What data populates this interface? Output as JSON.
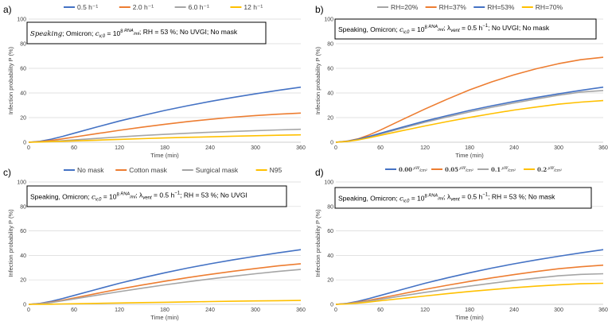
{
  "chart_data": [
    {
      "type": "line",
      "panel_label": "a)",
      "annotation": "Speaking; Omicron; c_v,0 = 10^8 RNA/ml; RH = 53 %; No UVGI; No mask",
      "annotation_parts": {
        "speaking": "Speaking",
        "rest": "; Omicron;",
        "cvar": "c",
        "csub": "v,0",
        "eq1": " = 10",
        "exp": "8",
        "frac_num": "RNA",
        "frac_den": "ml",
        "tail": "; RH = 53 %; No UVGI; No mask"
      },
      "xlabel": "Time (min)",
      "ylabel": "Infection probability  P (%)",
      "xticks": [
        "0",
        "60",
        "120",
        "180",
        "240",
        "300",
        "360"
      ],
      "yticks": [
        "0",
        "20",
        "40",
        "60",
        "80",
        "100"
      ],
      "xlim": [
        0,
        360
      ],
      "ylim": [
        0,
        100
      ],
      "x": [
        0,
        15,
        30,
        45,
        60,
        90,
        120,
        150,
        180,
        210,
        240,
        270,
        300,
        330,
        360
      ],
      "series": [
        {
          "name": "0.5  h⁻¹",
          "color": "#4472c4",
          "values": [
            0,
            0.8,
            2.5,
            4.8,
            7.3,
            12.3,
            17.2,
            21.6,
            25.8,
            29.6,
            33.1,
            36.3,
            39.3,
            42.1,
            44.7
          ]
        },
        {
          "name": "2.0  h⁻¹",
          "color": "#ed7d31",
          "values": [
            0,
            0.5,
            1.5,
            2.8,
            4.2,
            7.0,
            9.7,
            12.2,
            14.6,
            16.7,
            18.6,
            20.3,
            21.7,
            22.8,
            23.7
          ]
        },
        {
          "name": "6.0  h⁻¹",
          "color": "#a5a5a5",
          "values": [
            0,
            0.3,
            0.8,
            1.3,
            1.9,
            3.1,
            4.3,
            5.4,
            6.4,
            7.3,
            8.1,
            8.8,
            9.4,
            10.0,
            10.5
          ]
        },
        {
          "name": "12  h⁻¹",
          "color": "#ffc000",
          "values": [
            0,
            0.2,
            0.5,
            0.8,
            1.1,
            1.7,
            2.3,
            2.9,
            3.5,
            4.0,
            4.4,
            4.9,
            5.3,
            5.7,
            6.0
          ]
        }
      ]
    },
    {
      "type": "line",
      "panel_label": "b)",
      "annotation": "Speaking, Omicron; c_v,0 = 10^8 RNA/ml; λ_vent = 0.5 h^-1; No UVGI; No mask",
      "annotation_parts": {
        "lead": "Speaking, Omicron; ",
        "cvar": "c",
        "csub": "v,0",
        "eq1": " = 10",
        "exp": "8",
        "frac_num": "RNA",
        "frac_den": "ml",
        "lam": "; λ",
        "lamsub": "vent",
        "lameq": " = 0.5 h",
        "lamexp": "−1",
        "tail": "; No UVGI; No mask"
      },
      "xlabel": "Time (min)",
      "ylabel": "Infection probability  P (%)",
      "xticks": [
        "0",
        "60",
        "120",
        "180",
        "240",
        "300",
        "360"
      ],
      "yticks": [
        "0",
        "20",
        "40",
        "60",
        "80",
        "100"
      ],
      "xlim": [
        0,
        360
      ],
      "ylim": [
        0,
        100
      ],
      "x": [
        0,
        15,
        30,
        45,
        60,
        90,
        120,
        150,
        180,
        210,
        240,
        270,
        300,
        330,
        360
      ],
      "series": [
        {
          "name": "RH=20%",
          "color": "#a5a5a5",
          "values": [
            0,
            0.7,
            2.2,
            4.3,
            6.7,
            11.5,
            16.2,
            20.5,
            24.6,
            28.4,
            31.9,
            35.1,
            38.2,
            40.8,
            42.0
          ]
        },
        {
          "name": "RH=37%",
          "color": "#ed7d31",
          "values": [
            0,
            0.9,
            2.8,
            6.0,
            9.9,
            18.5,
            27.0,
            35.0,
            42.5,
            49.0,
            54.8,
            59.7,
            63.8,
            67.0,
            69.0
          ]
        },
        {
          "name": "RH=53%",
          "color": "#4472c4",
          "values": [
            0,
            0.8,
            2.5,
            4.8,
            7.3,
            12.3,
            17.2,
            21.6,
            25.8,
            29.6,
            33.1,
            36.3,
            39.3,
            42.1,
            44.7
          ]
        },
        {
          "name": "RH=70%",
          "color": "#ffc000",
          "values": [
            0,
            0.6,
            1.9,
            3.6,
            5.6,
            9.5,
            13.2,
            16.8,
            20.1,
            23.2,
            26.1,
            28.6,
            30.9,
            32.6,
            33.8
          ]
        }
      ]
    },
    {
      "type": "line",
      "panel_label": "c)",
      "annotation": "Speaking, Omicron; c_v,0 = 10^8 RNA/ml; λ_vent = 0.5 h^-1; RH = 53 %; No UVGI",
      "annotation_parts": {
        "lead": "Speaking, Omicron; ",
        "cvar": "c",
        "csub": "v,0",
        "eq1": " = 10",
        "exp": "8",
        "frac_num": "RNA",
        "frac_den": "ml",
        "lam": "; λ",
        "lamsub": "vent",
        "lameq": " = 0.5 h",
        "lamexp": "−1",
        "tail": "; RH = 53 %; No UVGI"
      },
      "xlabel": "Time (min)",
      "ylabel": "Infection probability  P (%)",
      "xticks": [
        "0",
        "60",
        "120",
        "180",
        "240",
        "300",
        "360"
      ],
      "yticks": [
        "0",
        "20",
        "40",
        "60",
        "80",
        "100"
      ],
      "xlim": [
        0,
        360
      ],
      "ylim": [
        0,
        100
      ],
      "x": [
        0,
        15,
        30,
        45,
        60,
        90,
        120,
        150,
        180,
        210,
        240,
        270,
        300,
        330,
        360
      ],
      "series": [
        {
          "name": "No mask",
          "color": "#4472c4",
          "values": [
            0,
            0.8,
            2.5,
            4.8,
            7.3,
            12.3,
            17.2,
            21.6,
            25.8,
            29.6,
            33.1,
            36.3,
            39.3,
            42.1,
            44.7
          ]
        },
        {
          "name": "Cotton mask",
          "color": "#ed7d31",
          "values": [
            0,
            0.6,
            1.8,
            3.4,
            5.2,
            8.9,
            12.5,
            15.8,
            18.9,
            21.8,
            24.5,
            27.0,
            29.3,
            31.4,
            33.2
          ]
        },
        {
          "name": "Surgical mask",
          "color": "#a5a5a5",
          "values": [
            0,
            0.5,
            1.5,
            2.9,
            4.4,
            7.4,
            10.4,
            13.2,
            15.9,
            18.4,
            20.7,
            22.9,
            25.0,
            26.9,
            28.5
          ]
        },
        {
          "name": "N95",
          "color": "#ffc000",
          "values": [
            0,
            0.05,
            0.15,
            0.3,
            0.45,
            0.8,
            1.1,
            1.4,
            1.7,
            2.0,
            2.3,
            2.5,
            2.8,
            3.0,
            3.2
          ]
        }
      ]
    },
    {
      "type": "line",
      "panel_label": "d)",
      "annotation": "Speaking, Omicron; c_v,0 = 10^8 RNA/ml; λ_vent = 0.5 h^-1; RH = 53 %; No mask",
      "annotation_parts": {
        "lead": "Speaking, Omicron; ",
        "cvar": "c",
        "csub": "v,0",
        "eq1": " = 10",
        "exp": "8",
        "frac_num": "RNA",
        "frac_den": "ml",
        "lam": "; λ",
        "lamsub": "vent",
        "lameq": " = 0.5 h",
        "lamexp": "−1",
        "tail": "; RH = 53 %; No mask"
      },
      "xlabel": "Time (min)",
      "ylabel": "Infection probability  P (%)",
      "xticks": [
        "0",
        "60",
        "120",
        "180",
        "240",
        "300",
        "360"
      ],
      "yticks": [
        "0",
        "20",
        "40",
        "60",
        "80",
        "100"
      ],
      "xlim": [
        0,
        360
      ],
      "ylim": [
        0,
        100
      ],
      "x": [
        0,
        15,
        30,
        45,
        60,
        90,
        120,
        150,
        180,
        210,
        240,
        270,
        300,
        330,
        360
      ],
      "legend_unit_num": "μW",
      "legend_unit_den": "cm²",
      "series": [
        {
          "name": "0.00",
          "color": "#4472c4",
          "values": [
            0,
            0.8,
            2.5,
            4.8,
            7.3,
            12.3,
            17.2,
            21.6,
            25.8,
            29.6,
            33.1,
            36.3,
            39.3,
            42.1,
            44.7
          ]
        },
        {
          "name": "0.05",
          "color": "#ed7d31",
          "values": [
            0,
            0.6,
            1.8,
            3.4,
            5.1,
            8.7,
            12.3,
            15.6,
            18.7,
            21.6,
            24.3,
            26.8,
            29.1,
            30.7,
            32.0
          ]
        },
        {
          "name": "0.1",
          "color": "#a5a5a5",
          "values": [
            0,
            0.5,
            1.4,
            2.7,
            4.1,
            7.0,
            9.8,
            12.4,
            14.9,
            17.3,
            19.5,
            21.5,
            23.3,
            24.5,
            25.0
          ]
        },
        {
          "name": "0.2",
          "color": "#ffc000",
          "values": [
            0,
            0.3,
            1.0,
            1.9,
            2.9,
            4.9,
            6.8,
            8.7,
            10.5,
            12.1,
            13.6,
            14.9,
            16.0,
            16.8,
            17.2
          ]
        }
      ]
    }
  ]
}
